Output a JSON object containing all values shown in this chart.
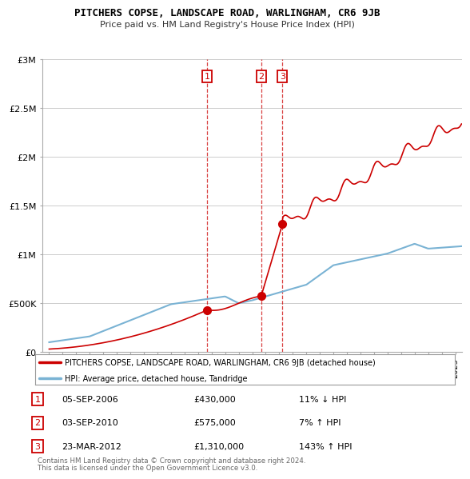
{
  "title": "PITCHERS COPSE, LANDSCAPE ROAD, WARLINGHAM, CR6 9JB",
  "subtitle": "Price paid vs. HM Land Registry's House Price Index (HPI)",
  "legend_line1": "PITCHERS COPSE, LANDSCAPE ROAD, WARLINGHAM, CR6 9JB (detached house)",
  "legend_line2": "HPI: Average price, detached house, Tandridge",
  "footer1": "Contains HM Land Registry data © Crown copyright and database right 2024.",
  "footer2": "This data is licensed under the Open Government Licence v3.0.",
  "transactions": [
    {
      "num": 1,
      "date": "05-SEP-2006",
      "price": 430000,
      "pct": "11%",
      "dir": "↓",
      "year": 2006.67
    },
    {
      "num": 2,
      "date": "03-SEP-2010",
      "price": 575000,
      "pct": "7%",
      "dir": "↑",
      "year": 2010.67
    },
    {
      "num": 3,
      "date": "23-MAR-2012",
      "price": 1310000,
      "pct": "143%",
      "dir": "↑",
      "year": 2012.23
    }
  ],
  "ylim": [
    0,
    3000000
  ],
  "yticks": [
    0,
    500000,
    1000000,
    1500000,
    2000000,
    2500000,
    3000000
  ],
  "ytick_labels": [
    "£0",
    "£500K",
    "£1M",
    "£1.5M",
    "£2M",
    "£2.5M",
    "£3M"
  ],
  "xlim": [
    1994.5,
    2025.5
  ],
  "hpi_color": "#7ab3d4",
  "sale_color": "#cc0000",
  "bg_color": "#ffffff",
  "grid_color": "#cccccc"
}
